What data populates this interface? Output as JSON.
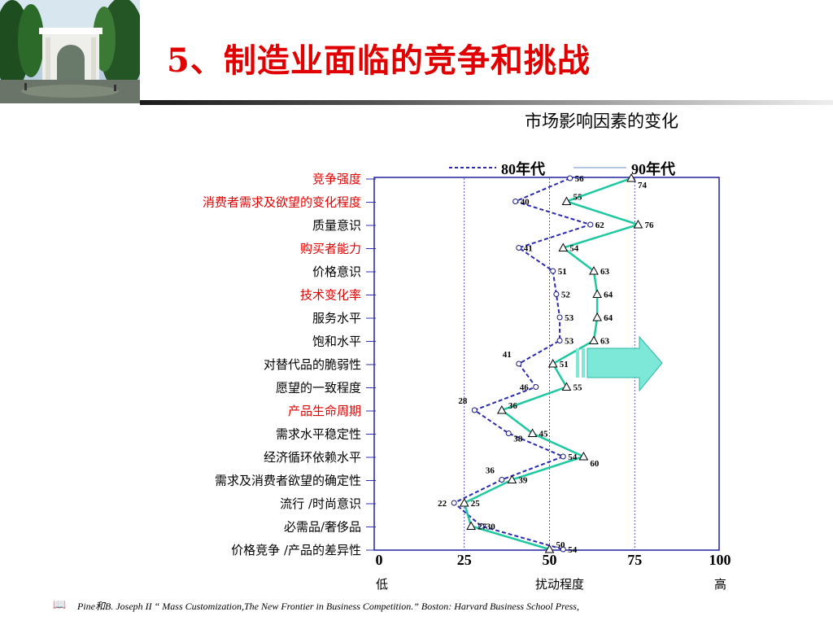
{
  "slide": {
    "title": "5、制造业面临的竞争和挑战",
    "subtitle": "市场影响因素的变化",
    "footnote": "Pine和B. Joseph II “ Mass Customization,The New Frontier in Business Competition.” Boston: Harvard Business School Press,",
    "icon": "book-icon"
  },
  "colors": {
    "title": "#e00000",
    "series_80s": "#2a2ab0",
    "series_90s": "#1ec8a0",
    "arrow": "#40d8c0",
    "frame": "#2020a0",
    "red_label": "#e00000"
  },
  "chart_data": {
    "type": "line",
    "orientation": "horizontal",
    "categories": [
      "竞争强度",
      "消费者需求及欲望的变化程度",
      "质量意识",
      "购买者能力",
      "价格意识",
      "技术变化率",
      "服务水平",
      "饱和水平",
      "对替代品的脆弱性",
      "愿望的一致程度",
      "产品生命周期",
      "需求水平稳定性",
      "经济循环依赖水平",
      "需求及消费者欲望的确定性",
      "流行 /时尚意识",
      "必需品/奢侈品",
      "价格竞争 /产品的差异性"
    ],
    "highlighted_categories": [
      "竞争强度",
      "消费者需求及欲望的变化程度",
      "购买者能力",
      "技术变化率",
      "产品生命周期"
    ],
    "series": [
      {
        "name": "80年代",
        "style": "dashed",
        "marker": "circle",
        "values": [
          56,
          40,
          62,
          41,
          51,
          52,
          53,
          53,
          41,
          46,
          28,
          38,
          54,
          36,
          22,
          30,
          54
        ]
      },
      {
        "name": "90年代",
        "style": "solid",
        "marker": "triangle",
        "values": [
          74,
          55,
          76,
          54,
          63,
          64,
          64,
          63,
          51,
          55,
          36,
          45,
          60,
          39,
          25,
          27,
          50
        ]
      }
    ],
    "xlim": [
      0,
      100
    ],
    "xticks": [
      "0",
      "25",
      "50",
      "75",
      "100"
    ],
    "reference_lines": [
      25,
      50,
      75
    ],
    "axis_note_low": "低",
    "axis_note_center": "扰动程度",
    "axis_note_high": "高",
    "legend": {
      "placement": "top",
      "entries": [
        "80年代",
        "90年代"
      ]
    },
    "annotation": "right-arrow"
  }
}
